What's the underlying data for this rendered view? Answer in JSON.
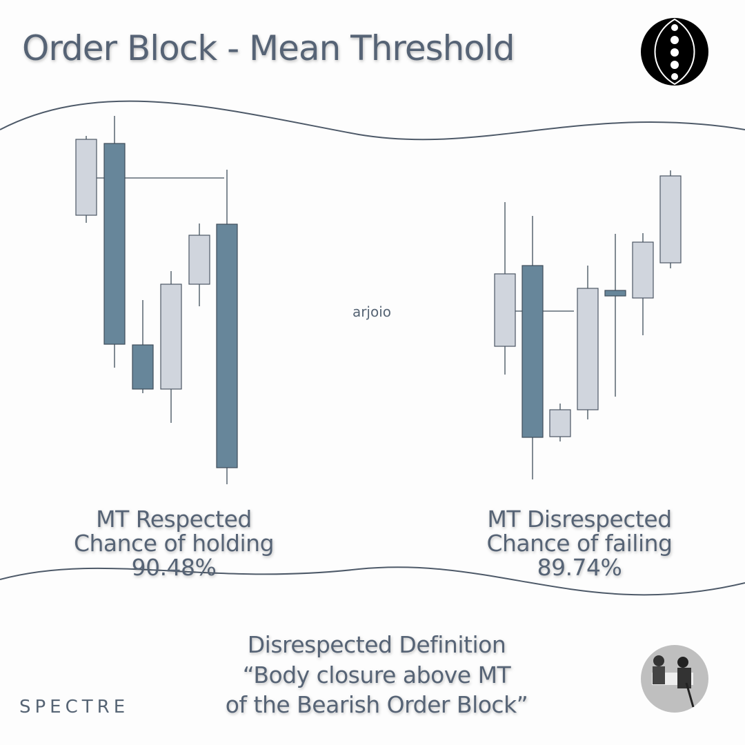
{
  "header": {
    "title": "Order Block - Mean Threshold"
  },
  "watermark": "arjoio",
  "left": {
    "lines": [
      "MT Respected",
      "Chance of holding",
      "90.48%"
    ]
  },
  "right": {
    "lines": [
      "MT Disrespected",
      "Chance of failing",
      "89.74%"
    ]
  },
  "definition": {
    "lines": [
      "Disrespected Definition",
      "“Body closure above MT",
      "of the Bearish Order Block”"
    ]
  },
  "footer": {
    "brand": "SPECTRE"
  }
}
